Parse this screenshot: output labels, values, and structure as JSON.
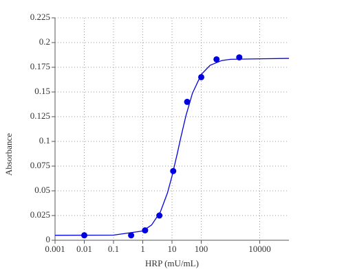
{
  "chart_data": {
    "type": "scatter",
    "x_label": "HRP (mU/mL)",
    "y_label": "Absorbance",
    "xscale": "log",
    "grid": true,
    "xlim": [
      0.001,
      100000
    ],
    "xticks": [
      0.001,
      0.01,
      0.1,
      1,
      10,
      100,
      10000
    ],
    "ylim": [
      0,
      0.225
    ],
    "yticks": [
      0,
      0.025,
      0.05,
      0.075,
      0.1,
      0.125,
      0.15,
      0.175,
      0.2,
      0.225
    ],
    "series": [
      {
        "style": "line",
        "color": "#0000e0",
        "x": [
          0.001,
          0.1,
          1,
          2,
          4,
          7,
          10,
          15,
          20,
          30,
          50,
          100,
          200,
          500,
          1000,
          100000
        ],
        "values": [
          0.005,
          0.0052,
          0.0094,
          0.0154,
          0.0287,
          0.0479,
          0.0649,
          0.0871,
          0.1039,
          0.1261,
          0.1487,
          0.1677,
          0.177,
          0.1818,
          0.1831,
          0.184
        ]
      },
      {
        "style": "markers",
        "color": "#0000e0",
        "x": [
          0.01,
          0.4,
          1.2,
          3.7,
          11,
          33,
          100,
          333,
          2000
        ],
        "values": [
          0.005,
          0.005,
          0.01,
          0.025,
          0.07,
          0.14,
          0.165,
          0.183,
          0.185
        ]
      }
    ]
  }
}
